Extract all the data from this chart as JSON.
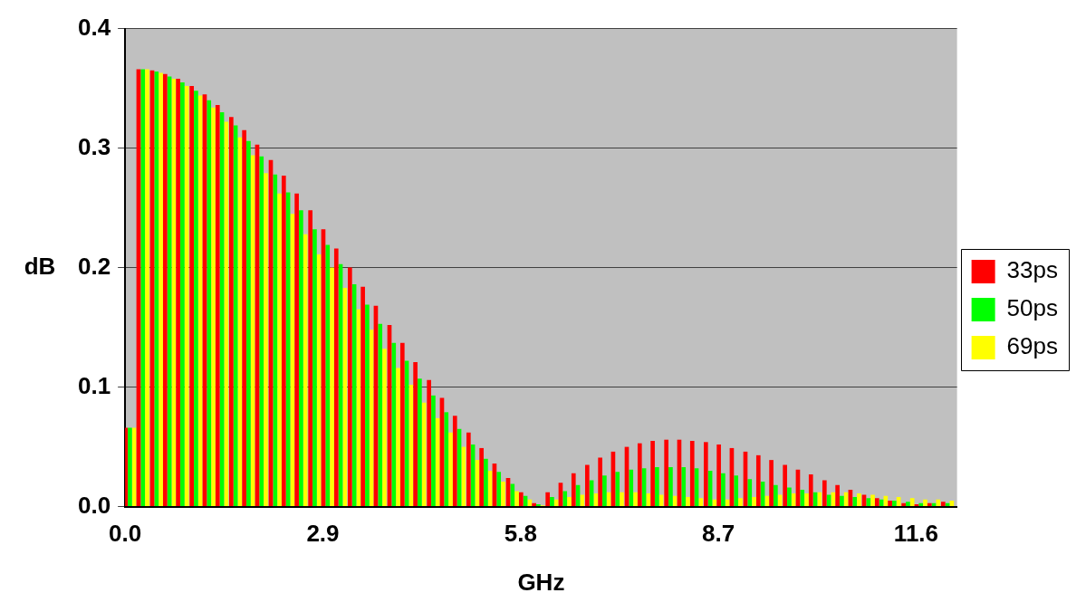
{
  "chart_data": {
    "type": "bar",
    "xlabel": "GHz",
    "ylabel": "dB",
    "x": [
      0.07,
      0.26,
      0.46,
      0.65,
      0.84,
      1.04,
      1.23,
      1.42,
      1.62,
      1.81,
      2.0,
      2.2,
      2.39,
      2.58,
      2.78,
      2.97,
      3.16,
      3.36,
      3.55,
      3.74,
      3.94,
      4.13,
      4.32,
      4.52,
      4.71,
      4.9,
      5.1,
      5.29,
      5.48,
      5.68,
      5.87,
      6.06,
      6.26,
      6.45,
      6.64,
      6.84,
      7.03,
      7.22,
      7.42,
      7.61,
      7.8,
      8.0,
      8.19,
      8.38,
      8.58,
      8.77,
      8.96,
      9.16,
      9.35,
      9.54,
      9.74,
      9.93,
      10.12,
      10.32,
      10.51,
      10.7,
      10.9,
      11.09,
      11.28,
      11.48,
      11.67,
      11.86,
      12.06
    ],
    "series": [
      {
        "name": "33ps",
        "color": "#ff0000",
        "values": [
          0.066,
          0.366,
          0.365,
          0.362,
          0.358,
          0.352,
          0.345,
          0.336,
          0.326,
          0.315,
          0.303,
          0.29,
          0.277,
          0.262,
          0.248,
          0.232,
          0.216,
          0.2,
          0.184,
          0.168,
          0.152,
          0.137,
          0.121,
          0.106,
          0.091,
          0.076,
          0.062,
          0.049,
          0.036,
          0.024,
          0.012,
          0.003,
          0.012,
          0.02,
          0.028,
          0.035,
          0.041,
          0.046,
          0.05,
          0.053,
          0.055,
          0.056,
          0.056,
          0.055,
          0.054,
          0.052,
          0.049,
          0.046,
          0.043,
          0.039,
          0.035,
          0.031,
          0.027,
          0.022,
          0.018,
          0.014,
          0.01,
          0.007,
          0.005,
          0.003,
          0.002,
          0.003,
          0.004
        ]
      },
      {
        "name": "50ps",
        "color": "#00ff00",
        "values": [
          0.066,
          0.366,
          0.364,
          0.36,
          0.355,
          0.348,
          0.34,
          0.33,
          0.319,
          0.306,
          0.293,
          0.278,
          0.263,
          0.248,
          0.232,
          0.219,
          0.203,
          0.186,
          0.169,
          0.153,
          0.137,
          0.122,
          0.107,
          0.093,
          0.079,
          0.065,
          0.052,
          0.04,
          0.029,
          0.019,
          0.009,
          0.002,
          0.008,
          0.013,
          0.018,
          0.022,
          0.026,
          0.029,
          0.031,
          0.032,
          0.033,
          0.033,
          0.033,
          0.032,
          0.03,
          0.028,
          0.026,
          0.023,
          0.021,
          0.018,
          0.016,
          0.014,
          0.012,
          0.01,
          0.009,
          0.008,
          0.007,
          0.006,
          0.005,
          0.004,
          0.003,
          0.003,
          0.003
        ]
      },
      {
        "name": "69ps",
        "color": "#ffff00",
        "values": [
          0.066,
          0.366,
          0.363,
          0.358,
          0.352,
          0.344,
          0.334,
          0.322,
          0.309,
          0.294,
          0.279,
          0.262,
          0.245,
          0.228,
          0.211,
          0.2,
          0.183,
          0.165,
          0.148,
          0.132,
          0.116,
          0.102,
          0.087,
          0.074,
          0.062,
          0.05,
          0.039,
          0.03,
          0.021,
          0.013,
          0.006,
          0.001,
          0.006,
          0.008,
          0.01,
          0.011,
          0.012,
          0.012,
          0.012,
          0.011,
          0.01,
          0.009,
          0.008,
          0.007,
          0.006,
          0.006,
          0.007,
          0.008,
          0.009,
          0.01,
          0.011,
          0.011,
          0.012,
          0.012,
          0.012,
          0.011,
          0.01,
          0.009,
          0.008,
          0.007,
          0.006,
          0.006,
          0.005
        ]
      }
    ],
    "xlim": [
      0,
      12.2
    ],
    "xticks": [
      {
        "value": 0,
        "label": "0.0"
      },
      2.9,
      5.8,
      8.7,
      11.6
    ],
    "ylim": [
      0,
      0.4
    ],
    "yticks": [
      {
        "value": 0,
        "label": "0.0"
      },
      0.1,
      0.2,
      0.3,
      0.4
    ],
    "grid": "y",
    "legend": "right"
  }
}
